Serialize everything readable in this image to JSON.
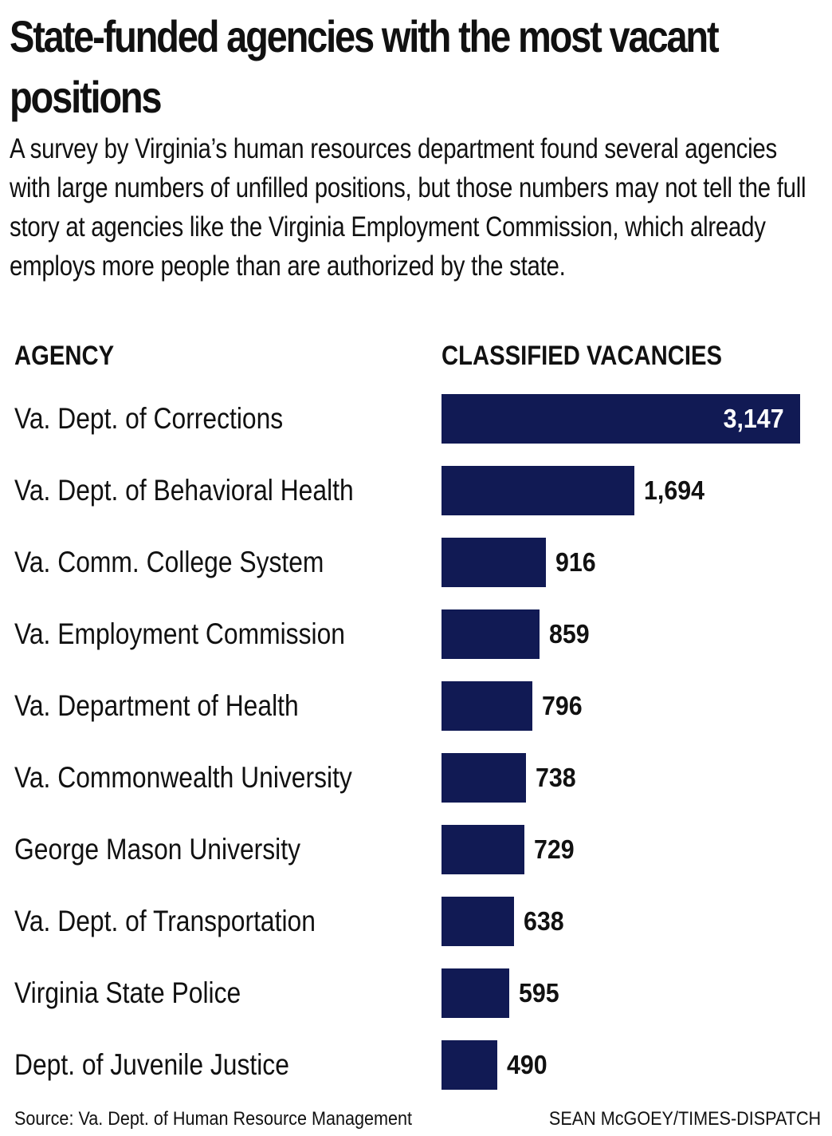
{
  "chart_data": {
    "type": "bar",
    "orientation": "horizontal",
    "title": "State-funded agencies with the most vacant positions",
    "subtitle": "A survey by Virginia’s human resources department found several agencies with large numbers of unfilled positions, but those numbers may not tell the full story at agencies like the Virginia Employment Commission, which already employs more people than are authorized by the state.",
    "category_header": "AGENCY",
    "value_header": "CLASSIFIED VACANCIES",
    "categories": [
      "Va. Dept. of Corrections",
      "Va. Dept. of Behavioral Health",
      "Va. Comm. College System",
      "Va. Employment Commission",
      "Va. Department of Health",
      "Va. Commonwealth University",
      "George Mason University",
      "Va. Dept. of Transportation",
      "Virginia State Police",
      "Dept. of Juvenile Justice"
    ],
    "values": [
      3147,
      1694,
      916,
      859,
      796,
      738,
      729,
      638,
      595,
      490
    ],
    "value_labels": [
      "3,147",
      "1,694",
      "916",
      "859",
      "796",
      "738",
      "729",
      "638",
      "595",
      "490"
    ],
    "xlim": [
      0,
      3147
    ],
    "grid": false,
    "bar_color": "#111a54",
    "source": "Source: Va. Dept. of Human Resource Management",
    "credit": "SEAN McGOEY/TIMES-DISPATCH"
  }
}
